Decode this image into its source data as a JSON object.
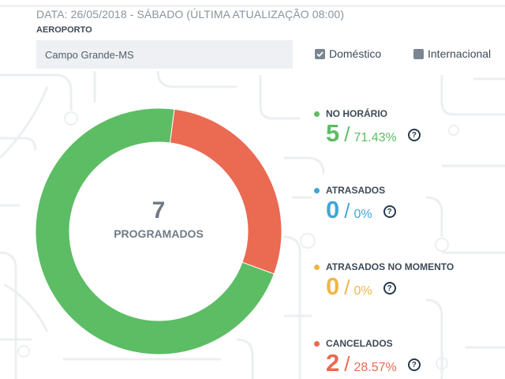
{
  "header": {
    "date_line": "DATA: 26/05/2018 - SÁBADO (ÚLTIMA ATUALIZAÇÃO 08:00)",
    "airport_label": "AEROPORTO",
    "airport_value": "Campo Grande-MS"
  },
  "filters": {
    "domestic": {
      "label": "Doméstico",
      "checked": true
    },
    "international": {
      "label": "Internacional",
      "checked": false
    }
  },
  "chart_data": {
    "type": "pie",
    "center_value": "7",
    "center_label": "PROGRAMADOS",
    "segments": [
      {
        "name": "NO HORÁRIO",
        "value": 5,
        "color": "#5cbd65"
      },
      {
        "name": "ATRASADOS",
        "value": 0,
        "color": "#3fa7d6"
      },
      {
        "name": "ATRASADOS NO MOMENTO",
        "value": 0,
        "color": "#f0b547"
      },
      {
        "name": "CANCELADOS",
        "value": 2,
        "color": "#ea6a52"
      }
    ]
  },
  "stats": [
    {
      "label": "NO HORÁRIO",
      "count": "5",
      "slash": "/",
      "percent": "71.43%",
      "color": "#5cbd65",
      "help": "?"
    },
    {
      "label": "ATRASADOS",
      "count": "0",
      "slash": "/",
      "percent": "0%",
      "color": "#3fa7d6",
      "help": "?"
    },
    {
      "label": "ATRASADOS NO MOMENTO",
      "count": "0",
      "slash": "/",
      "percent": "0%",
      "color": "#f0b547",
      "help": "?"
    },
    {
      "label": "CANCELADOS",
      "count": "2",
      "slash": "/",
      "percent": "28.57%",
      "color": "#ea6a52",
      "help": "?"
    }
  ]
}
